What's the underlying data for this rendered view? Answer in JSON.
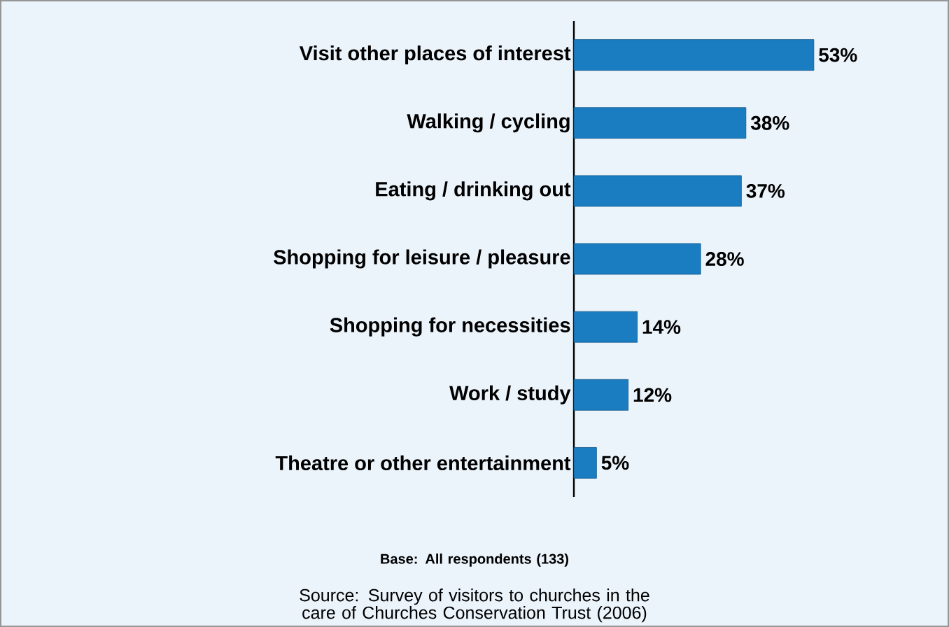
{
  "chart_data": {
    "type": "bar",
    "orientation": "horizontal",
    "categories": [
      "Visit other places of interest",
      "Walking / cycling",
      "Eating / drinking out",
      "Shopping for leisure / pleasure",
      "Shopping for necessities",
      "Work / study",
      "Theatre or other entertainment"
    ],
    "values": [
      53,
      38,
      37,
      28,
      14,
      12,
      5
    ],
    "value_labels": [
      "53%",
      "38%",
      "37%",
      "28%",
      "14%",
      "12%",
      "5%"
    ],
    "color": "#1a7cc1",
    "annotations": [
      "Base: All respondents (133)",
      "Source: Survey of visitors to churches in the care of Churches Conservation Trust  (2006)"
    ]
  }
}
